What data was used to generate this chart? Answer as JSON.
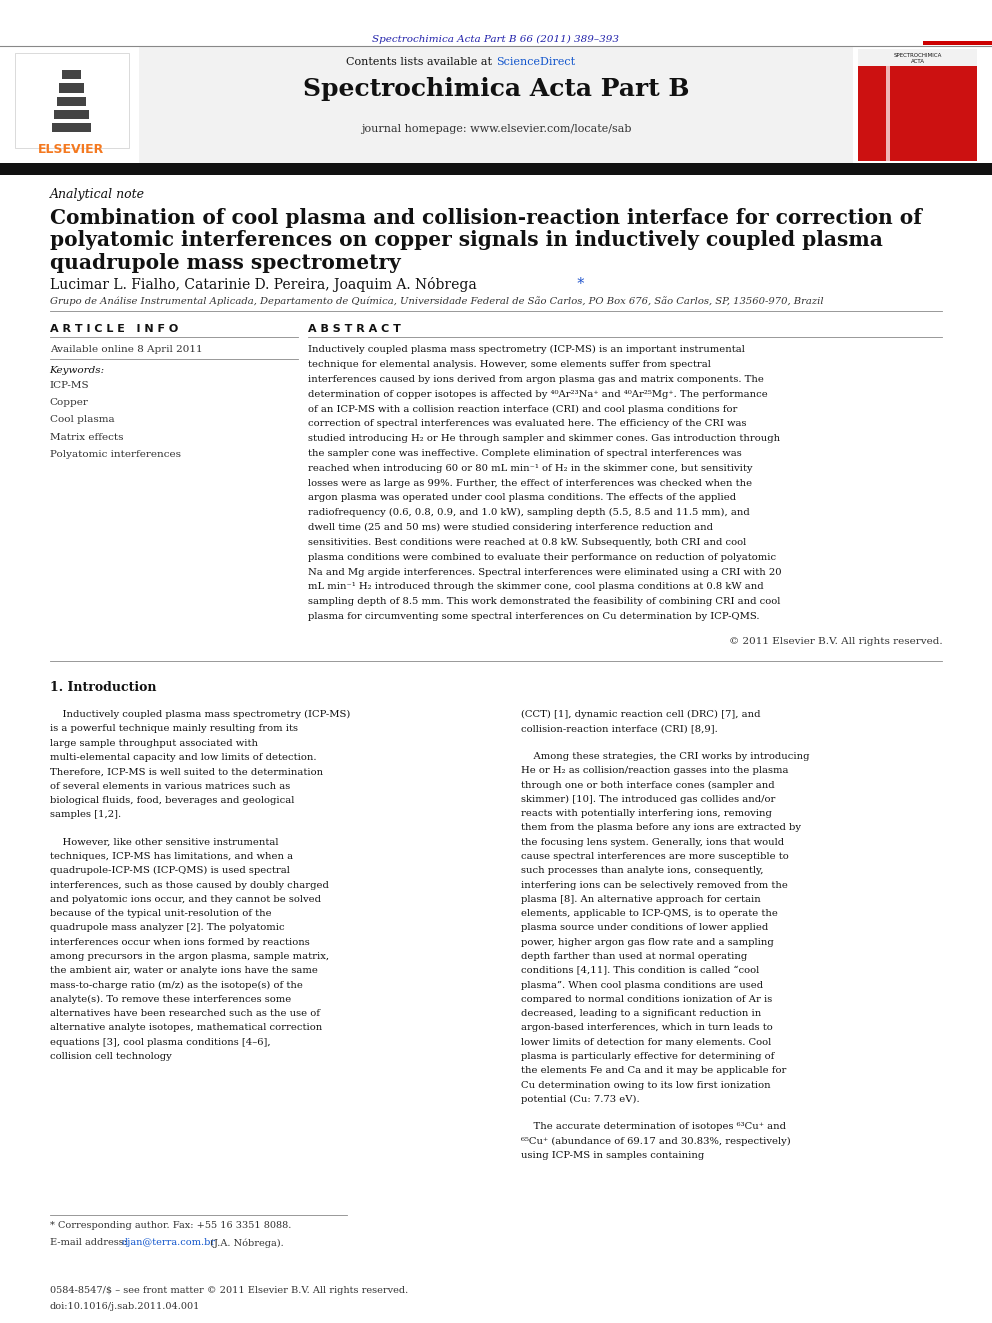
{
  "page_width": 9.92,
  "page_height": 13.23,
  "bg_color": "#ffffff",
  "top_journal_ref": "Spectrochimica Acta Part B 66 (2011) 389–393",
  "top_journal_ref_color": "#2222aa",
  "journal_name": "Spectrochimica Acta Part B",
  "journal_homepage": "journal homepage: www.elsevier.com/locate/sab",
  "contents_text": "Contents lists available at ",
  "sciencedirect_text": "ScienceDirect",
  "sciencedirect_color": "#1155cc",
  "elsevier_color": "#f47920",
  "article_type": "Analytical note",
  "title_line1": "Combination of cool plasma and collision-reaction interface for correction of",
  "title_line2": "polyatomic interferences on copper signals in inductively coupled plasma",
  "title_line3": "quadrupole mass spectrometry",
  "authors": "Lucimar L. Fialho, Catarinie D. Pereira, Joaquim A. Nóbrega",
  "affiliation": "Grupo de Análise Instrumental Aplicada, Departamento de Química, Universidade Federal de São Carlos, PO Box 676, São Carlos, SP, 13560-970, Brazil",
  "article_info_header": "A R T I C L E   I N F O",
  "available_online": "Available online 8 April 2011",
  "keywords_header": "Keywords:",
  "keywords": [
    "ICP-MS",
    "Copper",
    "Cool plasma",
    "Matrix effects",
    "Polyatomic interferences"
  ],
  "abstract_header": "A B S T R A C T",
  "abstract_text": "Inductively coupled plasma mass spectrometry (ICP-MS) is an important instrumental technique for elemental analysis. However, some elements suffer from spectral interferences caused by ions derived from argon plasma gas and matrix components. The determination of copper isotopes is affected by ⁴⁰Ar²³Na⁺ and ⁴⁰Ar²⁵Mg⁺. The performance of an ICP-MS with a collision reaction interface (CRI) and cool plasma conditions for correction of spectral interferences was evaluated here. The efficiency of the CRI was studied introducing H₂ or He through sampler and skimmer cones. Gas introduction through the sampler cone was ineffective. Complete elimination of spectral interferences was reached when introducing 60 or 80 mL min⁻¹ of H₂ in the skimmer cone, but sensitivity losses were as large as 99%. Further, the effect of interferences was checked when the argon plasma was operated under cool plasma conditions. The effects of the applied radiofrequency (0.6, 0.8, 0.9, and 1.0 kW), sampling depth (5.5, 8.5 and 11.5 mm), and dwell time (25 and 50 ms) were studied considering interference reduction and sensitivities. Best conditions were reached at 0.8 kW. Subsequently, both CRI and cool plasma conditions were combined to evaluate their performance on reduction of polyatomic Na and Mg argide interferences. Spectral interferences were eliminated using a CRI with 20 mL min⁻¹ H₂ introduced through the skimmer cone, cool plasma conditions at 0.8 kW and sampling depth of 8.5 mm. This work demonstrated the feasibility of combining CRI and cool plasma for circumventing some spectral interferences on Cu determination by ICP-QMS.",
  "copyright_text": "© 2011 Elsevier B.V. All rights reserved.",
  "section1_header": "1. Introduction",
  "intro_p1": "Inductively coupled plasma mass spectrometry (ICP-MS) is a powerful technique mainly resulting from its large sample throughput associated with multi-elemental capacity and low limits of detection. Therefore, ICP-MS is well suited to the determination of several elements in various matrices such as biological fluids, food, beverages and geological samples [1,2].",
  "intro_p2": "However, like other sensitive instrumental techniques, ICP-MS has limitations, and when a quadrupole-ICP-MS (ICP-QMS) is used spectral interferences, such as those caused by doubly charged and polyatomic ions occur, and they cannot be solved because of the typical unit-resolution of the quadrupole mass analyzer [2]. The polyatomic interferences occur when ions formed by reactions among precursors in the argon plasma, sample matrix, the ambient air, water or analyte ions have the same mass-to-charge ratio (m/z) as the isotope(s) of the analyte(s). To remove these interferences some alternatives have been researched such as the use of alternative analyte isotopes, mathematical correction equations [3], cool plasma conditions [4–6], collision cell technology",
  "col2_p1": "(CCT) [1], dynamic reaction cell (DRC) [7], and collision-reaction interface (CRI) [8,9].",
  "col2_p2": "Among these strategies, the CRI works by introducing He or H₂ as collision/reaction gasses into the plasma through one or both interface cones (sampler and skimmer) [10]. The introduced gas collides and/or reacts with potentially interfering ions, removing them from the plasma before any ions are extracted by the focusing lens system. Generally, ions that would cause spectral interferences are more susceptible to such processes than analyte ions, consequently, interfering ions can be selectively removed from the plasma [8]. An alternative approach for certain elements, applicable to ICP-QMS, is to operate the plasma source under conditions of lower applied power, higher argon gas flow rate and a sampling depth farther than used at normal operating conditions [4,11]. This condition is called “cool plasma”. When cool plasma conditions are used compared to normal conditions ionization of Ar is decreased, leading to a significant reduction in argon-based interferences, which in turn leads to lower limits of detection for many elements. Cool plasma is particularly effective for determining of the elements Fe and Ca and it may be applicable for Cu determination owing to its low first ionization potential (Cu: 7.73 eV).",
  "col2_p3": "The accurate determination of isotopes ⁶³Cu⁺ and ⁶⁵Cu⁺ (abundance of 69.17 and 30.83%, respectively) using ICP-MS in samples containing",
  "footnote_star": "* Corresponding author. Fax: +55 16 3351 8088.",
  "footnote_email_prefix": "E-mail address: ",
  "footnote_email_link": "djan@terra.com.br",
  "footnote_email_suffix": " (J.A. Nóbrega).",
  "bottom_text1": "0584-8547/$ – see front matter © 2011 Elsevier B.V. All rights reserved.",
  "bottom_text2": "doi:10.1016/j.sab.2011.04.001",
  "header_bg": "#f2f2f2",
  "red_bar_color": "#cc0000"
}
